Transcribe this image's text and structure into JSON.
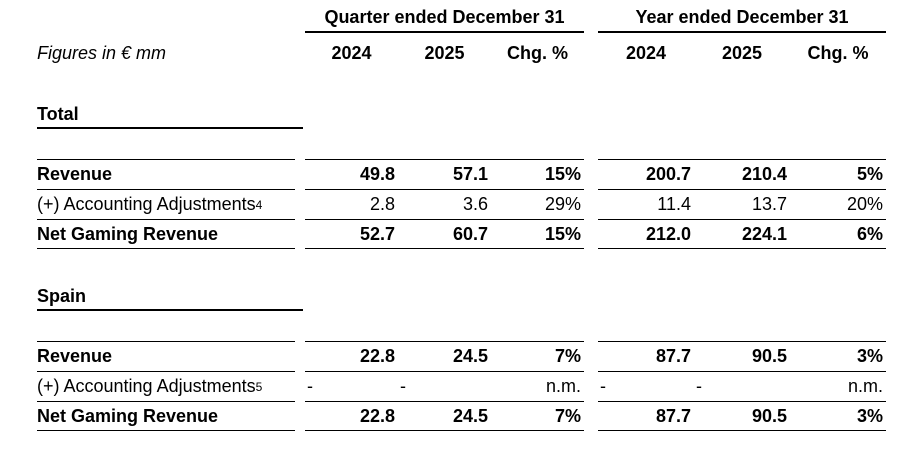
{
  "meta": {
    "figures_note": "Figures in € mm"
  },
  "column_groups": [
    {
      "title": "Quarter ended December 31",
      "columns": [
        "2024",
        "2025",
        "Chg. %"
      ]
    },
    {
      "title": "Year ended December 31",
      "columns": [
        "2024",
        "2025",
        "Chg. %"
      ]
    }
  ],
  "sections": [
    {
      "title": "Total",
      "rows": [
        {
          "label": "Revenue",
          "quarter": [
            "49.8",
            "57.1",
            "15%"
          ],
          "year": [
            "200.7",
            "210.4",
            "5%"
          ]
        },
        {
          "label": "(+) Accounting Adjustments",
          "sup": "4",
          "quarter": [
            "2.8",
            "3.6",
            "29%"
          ],
          "year": [
            "11.4",
            "13.7",
            "20%"
          ]
        },
        {
          "label": "Net Gaming Revenue",
          "quarter": [
            "52.7",
            "60.7",
            "15%"
          ],
          "year": [
            "212.0",
            "224.1",
            "6%"
          ]
        }
      ]
    },
    {
      "title": "Spain",
      "rows": [
        {
          "label": "Revenue",
          "quarter": [
            "22.8",
            "24.5",
            "7%"
          ],
          "year": [
            "87.7",
            "90.5",
            "3%"
          ]
        },
        {
          "label": "(+) Accounting Adjustments",
          "sup": "5",
          "quarter": [
            "-",
            "-",
            "n.m."
          ],
          "year": [
            "-",
            "-",
            "n.m."
          ]
        },
        {
          "label": "Net Gaming Revenue",
          "quarter": [
            "22.8",
            "24.5",
            "7%"
          ],
          "year": [
            "87.7",
            "90.5",
            "3%"
          ]
        }
      ]
    }
  ]
}
